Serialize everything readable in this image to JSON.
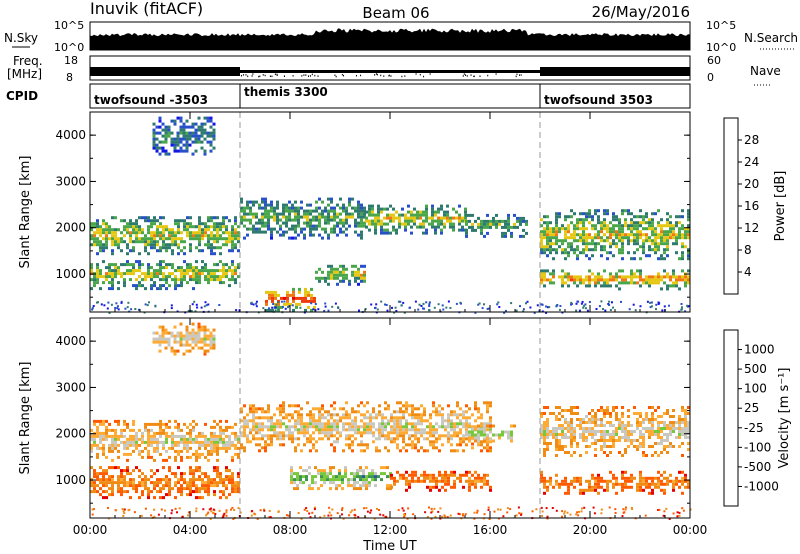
{
  "header": {
    "station": "Inuvik (fitACF)",
    "beam": "Beam 06",
    "date": "26/May/2016"
  },
  "summary": {
    "nsky_label": "N.Sky",
    "nsky_ticks": [
      "10^5",
      "10^0"
    ],
    "nsearch_label": "N.Search",
    "nsearch_ticks": [
      "10^5",
      "10^0"
    ],
    "freq_label_line1": "Freq.",
    "freq_label_line2": "[MHz]",
    "freq_ticks": [
      "18",
      "8"
    ],
    "nave_label": "Nave",
    "nave_ticks": [
      "60",
      "0"
    ],
    "cpid_label": "CPID",
    "modes": [
      {
        "name": "twofsound",
        "id": "-3503",
        "start_hour": 0,
        "end_hour": 6
      },
      {
        "name": "themis",
        "id": "3300",
        "start_hour": 6,
        "end_hour": 18
      },
      {
        "name": "twofsound",
        "id": "3503",
        "start_hour": 18,
        "end_hour": 24
      }
    ]
  },
  "colors": {
    "power": [
      "#1414e6",
      "#2850c8",
      "#2e7a6e",
      "#4aa64a",
      "#e6c814",
      "#f07814",
      "#f03c0a",
      "#e60000"
    ],
    "velocity": [
      "#e60000",
      "#ff5a00",
      "#f08c14",
      "#ffaa32",
      "#c8c8c0",
      "#78c83c",
      "#3c9650",
      "#285aa0",
      "#1e32b4"
    ],
    "gray": "#b4b4b4"
  },
  "chart_data": [
    {
      "type": "heatmap",
      "panel": "power",
      "ylabel": "Slant Range [km]",
      "ylim": [
        180,
        4500
      ],
      "yticks": [
        "1000",
        "2000",
        "3000",
        "4000"
      ],
      "xlim": [
        0,
        24
      ],
      "xticks": [
        "00:00",
        "04:00",
        "08:00",
        "12:00",
        "16:00",
        "20:00",
        "00:00"
      ],
      "colorbar_label": "Power [dB]",
      "colorbar_ticks": [
        "4",
        "8",
        "12",
        "16",
        "20",
        "24",
        "28"
      ],
      "regions": [
        {
          "t": [
            0.0,
            6.0
          ],
          "r": [
            1450,
            2250
          ],
          "level": 4
        },
        {
          "t": [
            0.0,
            6.0
          ],
          "r": [
            700,
            1300
          ],
          "level": 4
        },
        {
          "t": [
            2.5,
            5.0
          ],
          "r": [
            3600,
            4400
          ],
          "level": 2
        },
        {
          "t": [
            6.0,
            11.0
          ],
          "r": [
            1800,
            2650
          ],
          "level": 3
        },
        {
          "t": [
            11.0,
            15.0
          ],
          "r": [
            1900,
            2500
          ],
          "level": 4
        },
        {
          "t": [
            7.0,
            9.0
          ],
          "r": [
            200,
            700
          ],
          "level": 6
        },
        {
          "t": [
            9.0,
            11.0
          ],
          "r": [
            800,
            1200
          ],
          "level": 4
        },
        {
          "t": [
            15.0,
            17.5
          ],
          "r": [
            1800,
            2300
          ],
          "level": 3
        },
        {
          "t": [
            18.0,
            24.0
          ],
          "r": [
            1300,
            2400
          ],
          "level": 4
        },
        {
          "t": [
            18.0,
            24.0
          ],
          "r": [
            700,
            1100
          ],
          "level": 5
        }
      ]
    },
    {
      "type": "heatmap",
      "panel": "velocity",
      "ylabel": "Slant Range [km]",
      "ylim": [
        180,
        4500
      ],
      "yticks": [
        "1000",
        "2000",
        "3000",
        "4000"
      ],
      "xlabel": "Time UT",
      "xlim": [
        0,
        24
      ],
      "xticks": [
        "00:00",
        "04:00",
        "08:00",
        "12:00",
        "16:00",
        "20:00",
        "00:00"
      ],
      "colorbar_label": "Velocity [m s⁻¹]",
      "colorbar_ticks": [
        "1000",
        "500",
        "100",
        "25",
        "-25",
        "-100",
        "-500",
        "-1000"
      ],
      "regions": [
        {
          "t": [
            0.0,
            6.0
          ],
          "r": [
            1400,
            2300
          ],
          "level": 4
        },
        {
          "t": [
            0.0,
            6.0
          ],
          "r": [
            600,
            1300
          ],
          "level": 2
        },
        {
          "t": [
            2.5,
            5.0
          ],
          "r": [
            3700,
            4400
          ],
          "level": 4
        },
        {
          "t": [
            6.0,
            16.0
          ],
          "r": [
            1600,
            2700
          ],
          "level": 4
        },
        {
          "t": [
            8.0,
            12.0
          ],
          "r": [
            800,
            1300
          ],
          "level": 6
        },
        {
          "t": [
            12.0,
            16.0
          ],
          "r": [
            800,
            1200
          ],
          "level": 2
        },
        {
          "t": [
            15.0,
            17.0
          ],
          "r": [
            1800,
            2200
          ],
          "level": 5
        },
        {
          "t": [
            18.0,
            24.0
          ],
          "r": [
            1500,
            2600
          ],
          "level": 4
        },
        {
          "t": [
            18.0,
            24.0
          ],
          "r": [
            700,
            1200
          ],
          "level": 2
        }
      ]
    }
  ]
}
